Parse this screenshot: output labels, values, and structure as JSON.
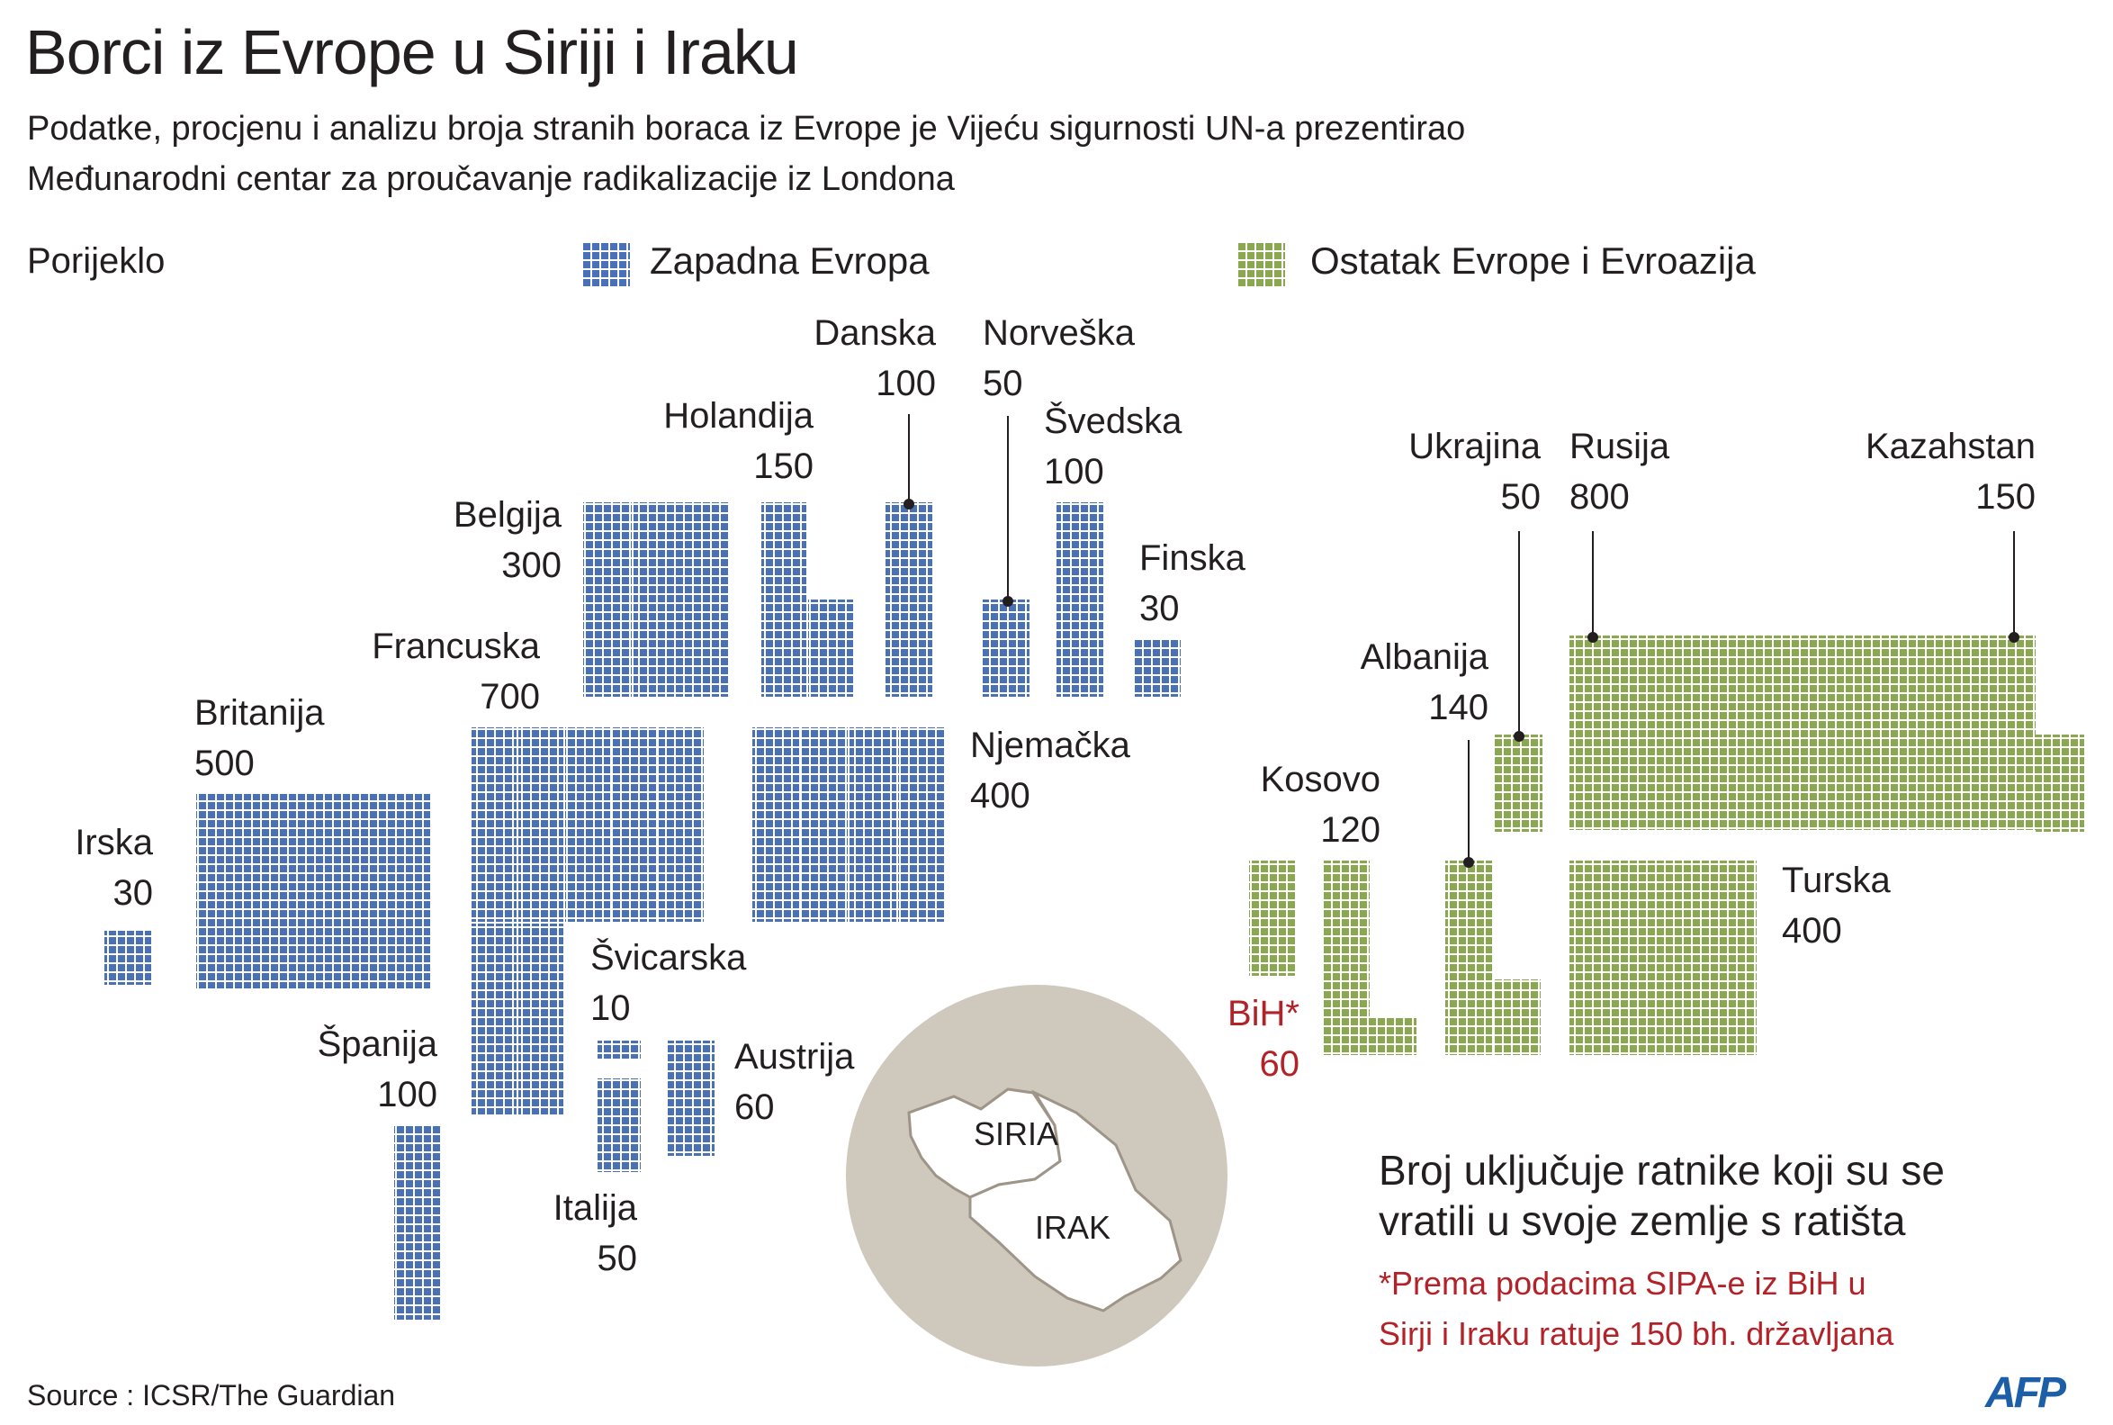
{
  "title": "Borci iz Evrope u Siriji i Iraku",
  "subtitle": [
    "Podatke, procjenu i analizu broja stranih boraca iz Evrope je Vijeću sigurnosti UN-a prezentirao",
    "Međunarodni centar za proučavanje radikalizacije iz Londona"
  ],
  "legend": {
    "heading": "Porijeklo",
    "items": [
      {
        "label": "Zapadna Evropa",
        "color": "#4a70b8"
      },
      {
        "label": "Ostatak Evrope i Evroazija",
        "color": "#8aa84f"
      }
    ]
  },
  "chart_data": {
    "type": "waffle",
    "unit": "1 square = 10 fighters",
    "series": [
      {
        "name": "Zapadna Evropa",
        "color": "#4a70b8",
        "countries": [
          {
            "country": "Irska",
            "value": 30
          },
          {
            "country": "Britanija",
            "value": 500
          },
          {
            "country": "Francuska",
            "value": 700
          },
          {
            "country": "Belgija",
            "value": 300
          },
          {
            "country": "Holandija",
            "value": 150
          },
          {
            "country": "Danska",
            "value": 100
          },
          {
            "country": "Norveška",
            "value": 50
          },
          {
            "country": "Švedska",
            "value": 100
          },
          {
            "country": "Finska",
            "value": 30
          },
          {
            "country": "Njemačka",
            "value": 400
          },
          {
            "country": "Švicarska",
            "value": 10
          },
          {
            "country": "Italija",
            "value": 50
          },
          {
            "country": "Austrija",
            "value": 60
          },
          {
            "country": "Španija",
            "value": 100
          }
        ]
      },
      {
        "name": "Ostatak Evrope i Evroazija",
        "color": "#8aa84f",
        "countries": [
          {
            "country": "Ukrajina",
            "value": 50
          },
          {
            "country": "Rusija",
            "value": 800
          },
          {
            "country": "Kazahstan",
            "value": 150
          },
          {
            "country": "Albanija",
            "value": 140
          },
          {
            "country": "Kosovo",
            "value": 120
          },
          {
            "country": "BiH*",
            "value": 60
          },
          {
            "country": "Turska",
            "value": 400
          }
        ]
      }
    ]
  },
  "map": {
    "label_syria": "SIRIA",
    "label_iraq": "IRAK"
  },
  "note": {
    "main": [
      "Broj uključuje ratnike koji su se",
      "vratili u svoje zemlje s ratišta"
    ],
    "footnote": [
      "*Prema podacima SIPA-e iz BiH u",
      "Sirji i Iraku ratuje 150 bh. državljana"
    ],
    "footnote_color": "#b22228"
  },
  "source": "Source : ICSR/The Guardian",
  "logo": "AFP"
}
